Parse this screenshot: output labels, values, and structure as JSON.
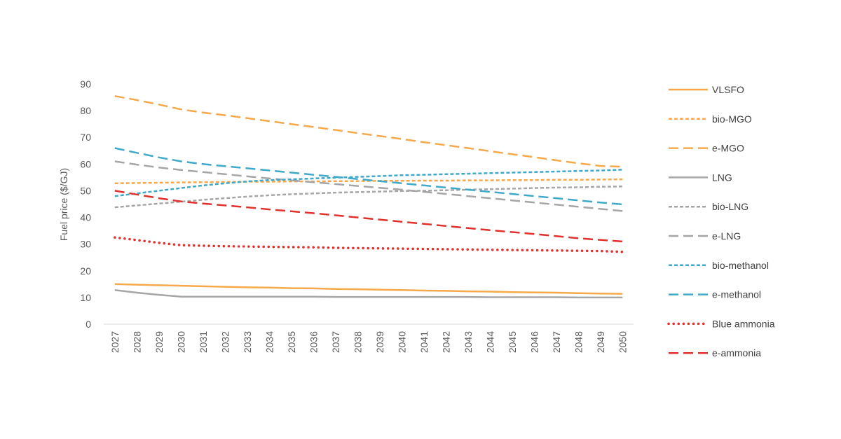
{
  "chart_data": {
    "type": "line",
    "title": "",
    "xlabel": "",
    "ylabel": "Fuel price ($/GJ)",
    "ylim": [
      0,
      90
    ],
    "yticks": [
      0,
      10,
      20,
      30,
      40,
      50,
      60,
      70,
      80,
      90
    ],
    "grid": false,
    "legend_position": "right",
    "x": [
      "2027",
      "2028",
      "2029",
      "2030",
      "2031",
      "2032",
      "2033",
      "2034",
      "2035",
      "2036",
      "2037",
      "2038",
      "2039",
      "2040",
      "2041",
      "2042",
      "2043",
      "2044",
      "2045",
      "2046",
      "2047",
      "2048",
      "2049",
      "2050"
    ],
    "series": [
      {
        "name": "VLSFO",
        "color": "#f5a94a",
        "dash": "solid",
        "width": 2.5,
        "values": [
          15,
          14.8,
          14.6,
          14.4,
          14.2,
          14.0,
          13.8,
          13.7,
          13.5,
          13.4,
          13.2,
          13.1,
          12.9,
          12.8,
          12.6,
          12.5,
          12.3,
          12.2,
          12.0,
          11.9,
          11.8,
          11.6,
          11.5,
          11.4
        ]
      },
      {
        "name": "bio-MGO",
        "color": "#f5a94a",
        "dash": "short",
        "width": 2.5,
        "values": [
          52.8,
          52.9,
          53.0,
          53.1,
          53.2,
          53.3,
          53.4,
          53.4,
          53.5,
          53.5,
          53.6,
          53.6,
          53.7,
          53.7,
          53.8,
          53.8,
          53.9,
          53.9,
          54.0,
          54.0,
          54.1,
          54.1,
          54.2,
          54.3
        ]
      },
      {
        "name": "e-MGO",
        "color": "#f5a94a",
        "dash": "long",
        "width": 2.5,
        "values": [
          85.5,
          84.0,
          82.3,
          80.5,
          79.3,
          78.3,
          77.2,
          76.1,
          75.0,
          73.9,
          72.8,
          71.6,
          70.5,
          69.4,
          68.2,
          67.1,
          66.0,
          64.8,
          63.7,
          62.6,
          61.4,
          60.3,
          59.3,
          59.0
        ]
      },
      {
        "name": "LNG",
        "color": "#a6a6a6",
        "dash": "solid",
        "width": 2.5,
        "values": [
          12.8,
          11.8,
          11.0,
          10.3,
          10.3,
          10.3,
          10.3,
          10.3,
          10.3,
          10.3,
          10.2,
          10.2,
          10.2,
          10.2,
          10.2,
          10.2,
          10.2,
          10.1,
          10.1,
          10.1,
          10.1,
          10.0,
          10.0,
          10.0
        ]
      },
      {
        "name": "bio-LNG",
        "color": "#a6a6a6",
        "dash": "short",
        "width": 2.5,
        "values": [
          43.8,
          44.5,
          45.2,
          45.9,
          46.6,
          47.2,
          47.8,
          48.3,
          48.7,
          49.0,
          49.3,
          49.5,
          49.7,
          49.9,
          50.0,
          50.2,
          50.4,
          50.6,
          50.8,
          51.0,
          51.2,
          51.3,
          51.5,
          51.6
        ]
      },
      {
        "name": "e-LNG",
        "color": "#a6a6a6",
        "dash": "long",
        "width": 2.5,
        "values": [
          61.0,
          59.8,
          58.7,
          57.8,
          57.0,
          56.2,
          55.4,
          54.6,
          53.9,
          53.2,
          52.5,
          51.8,
          51.1,
          50.4,
          49.6,
          48.8,
          48.0,
          47.2,
          46.4,
          45.6,
          44.8,
          44.0,
          43.2,
          42.4
        ]
      },
      {
        "name": "bio-methanol",
        "color": "#3fa9c9",
        "dash": "short",
        "width": 2.5,
        "values": [
          48.0,
          49.0,
          50.0,
          51.0,
          52.0,
          52.8,
          53.5,
          54.0,
          54.3,
          54.6,
          54.9,
          55.2,
          55.5,
          55.8,
          56.0,
          56.2,
          56.4,
          56.6,
          56.8,
          57.0,
          57.2,
          57.4,
          57.6,
          57.9
        ]
      },
      {
        "name": "e-methanol",
        "color": "#3fa9c9",
        "dash": "long",
        "width": 2.5,
        "values": [
          66.0,
          64.2,
          62.5,
          61.0,
          60.0,
          59.2,
          58.4,
          57.6,
          56.8,
          56.0,
          55.2,
          54.4,
          53.6,
          52.8,
          52.0,
          51.2,
          50.4,
          49.6,
          48.8,
          48.0,
          47.2,
          46.4,
          45.6,
          44.9
        ]
      },
      {
        "name": "Blue ammonia",
        "color": "#e0312d",
        "dash": "dot",
        "width": 3.5,
        "values": [
          32.5,
          31.5,
          30.5,
          29.6,
          29.4,
          29.2,
          29.1,
          29.0,
          28.9,
          28.8,
          28.6,
          28.5,
          28.4,
          28.3,
          28.2,
          28.1,
          28.0,
          27.9,
          27.8,
          27.7,
          27.6,
          27.5,
          27.4,
          27.1
        ]
      },
      {
        "name": "e-ammonia",
        "color": "#e0312d",
        "dash": "long",
        "width": 2.5,
        "values": [
          50.0,
          48.6,
          47.2,
          46.0,
          45.2,
          44.5,
          43.8,
          43.0,
          42.3,
          41.6,
          40.8,
          40.0,
          39.2,
          38.4,
          37.6,
          36.8,
          36.0,
          35.2,
          34.5,
          33.8,
          33.0,
          32.2,
          31.6,
          31.0
        ]
      }
    ]
  }
}
